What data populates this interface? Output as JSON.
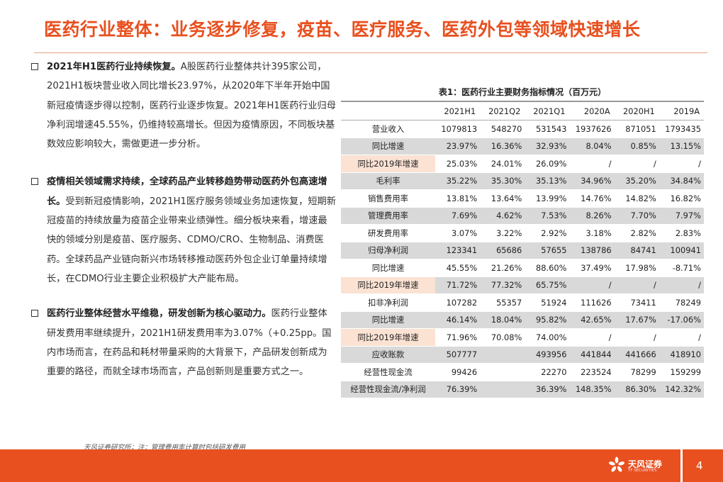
{
  "title": "医药行业整体：业务逐步修复，疫苗、医疗服务、医药外包等领域快速增长",
  "bullets": [
    {
      "bold": "2021年H1医药行业持续恢复。",
      "text": "A股医药行业整体共计395家公司，2021H1板块营业收入同比增长23.97%，从2020年下半年开始中国新冠疫情逐步得以控制，医药行业逐步恢复。2021年H1医药行业归母净利润增速45.55%，仍维持较高增长。但因为疫情原因，不同板块基数效应影响较大，需做更进一步分析。"
    },
    {
      "bold": "疫情相关领域需求持续，全球药品产业转移趋势带动医药外包高速增长。",
      "text": "受到新冠疫情影响，2021H1医疗服务领域业务加速恢复，短期新冠疫苗的持续放量为疫苗企业带来业绩弹性。细分板块来看，增速最快的领域分别是疫苗、医疗服务、CDMO/CRO、生物制品、消费医药。全球药品产业链向新兴市场转移推动医药外包企业订单量持续增长，在CDMO行业主要企业积极扩大产能布局。"
    },
    {
      "bold": "医药行业整体经营水平维稳，研发创新为核心驱动力。",
      "text": "医药行业整体研发费用率继续提升，2021H1研发费用率为3.07%（+0.25pp。国内市场而言，在药品和耗材带量采购的大背景下，产品研发创新成为重要的路径，而就全球市场而言，产品创新则是重要方式之一。"
    }
  ],
  "table": {
    "caption": "表1：医药行业主要财务指标情况（百万元）",
    "columns": [
      "2021H1",
      "2021Q2",
      "2021Q1",
      "2020A",
      "2020H1",
      "2019A"
    ],
    "rows": [
      {
        "label": "营业收入",
        "values": [
          "1079813",
          "548270",
          "531543",
          "1937626",
          "871051",
          "1793435"
        ],
        "shade": false,
        "hl": false
      },
      {
        "label": "同比增速",
        "values": [
          "23.97%",
          "16.36%",
          "32.93%",
          "8.04%",
          "0.85%",
          "13.15%"
        ],
        "shade": true,
        "hl": false
      },
      {
        "label": "同比2019年增速",
        "values": [
          "25.03%",
          "24.01%",
          "26.09%",
          "/",
          "/",
          "/"
        ],
        "shade": false,
        "hl": true
      },
      {
        "label": "毛利率",
        "values": [
          "35.22%",
          "35.30%",
          "35.13%",
          "34.96%",
          "35.20%",
          "34.84%"
        ],
        "shade": true,
        "hl": false
      },
      {
        "label": "销售费用率",
        "values": [
          "13.81%",
          "13.64%",
          "13.99%",
          "14.76%",
          "14.82%",
          "16.82%"
        ],
        "shade": false,
        "hl": false
      },
      {
        "label": "管理费用率",
        "values": [
          "7.69%",
          "4.62%",
          "7.53%",
          "8.26%",
          "7.70%",
          "7.97%"
        ],
        "shade": true,
        "hl": false
      },
      {
        "label": "研发费用率",
        "values": [
          "3.07%",
          "3.22%",
          "2.92%",
          "3.18%",
          "2.82%",
          "2.83%"
        ],
        "shade": false,
        "hl": false
      },
      {
        "label": "归母净利润",
        "values": [
          "123341",
          "65686",
          "57655",
          "138786",
          "84741",
          "100941"
        ],
        "shade": true,
        "hl": false
      },
      {
        "label": "同比增速",
        "values": [
          "45.55%",
          "21.26%",
          "88.60%",
          "37.49%",
          "17.98%",
          "-8.71%"
        ],
        "shade": false,
        "hl": false
      },
      {
        "label": "同比2019年增速",
        "values": [
          "71.72%",
          "77.32%",
          "65.75%",
          "/",
          "/",
          "/"
        ],
        "shade": true,
        "hl": true
      },
      {
        "label": "扣非净利润",
        "values": [
          "107282",
          "55357",
          "51924",
          "111626",
          "73411",
          "78249"
        ],
        "shade": false,
        "hl": false
      },
      {
        "label": "同比增速",
        "values": [
          "46.14%",
          "18.04%",
          "95.82%",
          "42.65%",
          "17.67%",
          "-17.06%"
        ],
        "shade": true,
        "hl": false
      },
      {
        "label": "同比2019年增速",
        "values": [
          "71.96%",
          "70.08%",
          "74.00%",
          "/",
          "/",
          "/"
        ],
        "shade": false,
        "hl": true
      },
      {
        "label": "应收账款",
        "values": [
          "507777",
          "",
          "493956",
          "441844",
          "441666",
          "418910"
        ],
        "shade": true,
        "hl": false
      },
      {
        "label": "经营性现金流",
        "values": [
          "99426",
          "",
          "22270",
          "223524",
          "78299",
          "159299"
        ],
        "shade": false,
        "hl": false
      },
      {
        "label": "经营性现金流/净利润",
        "values": [
          "76.39%",
          "",
          "36.39%",
          "148.35%",
          "86.30%",
          "142.32%"
        ],
        "shade": true,
        "hl": false
      }
    ]
  },
  "footnote": "天风证券研究所；注：管理费用率计算时包括研发费用",
  "logo": {
    "name": "天风证券",
    "sub": "TF SECURITIES"
  },
  "page_number": "4",
  "colors": {
    "accent": "#e8501f",
    "shade": "#d9d9d9",
    "highlight": "#fbe2d3"
  }
}
